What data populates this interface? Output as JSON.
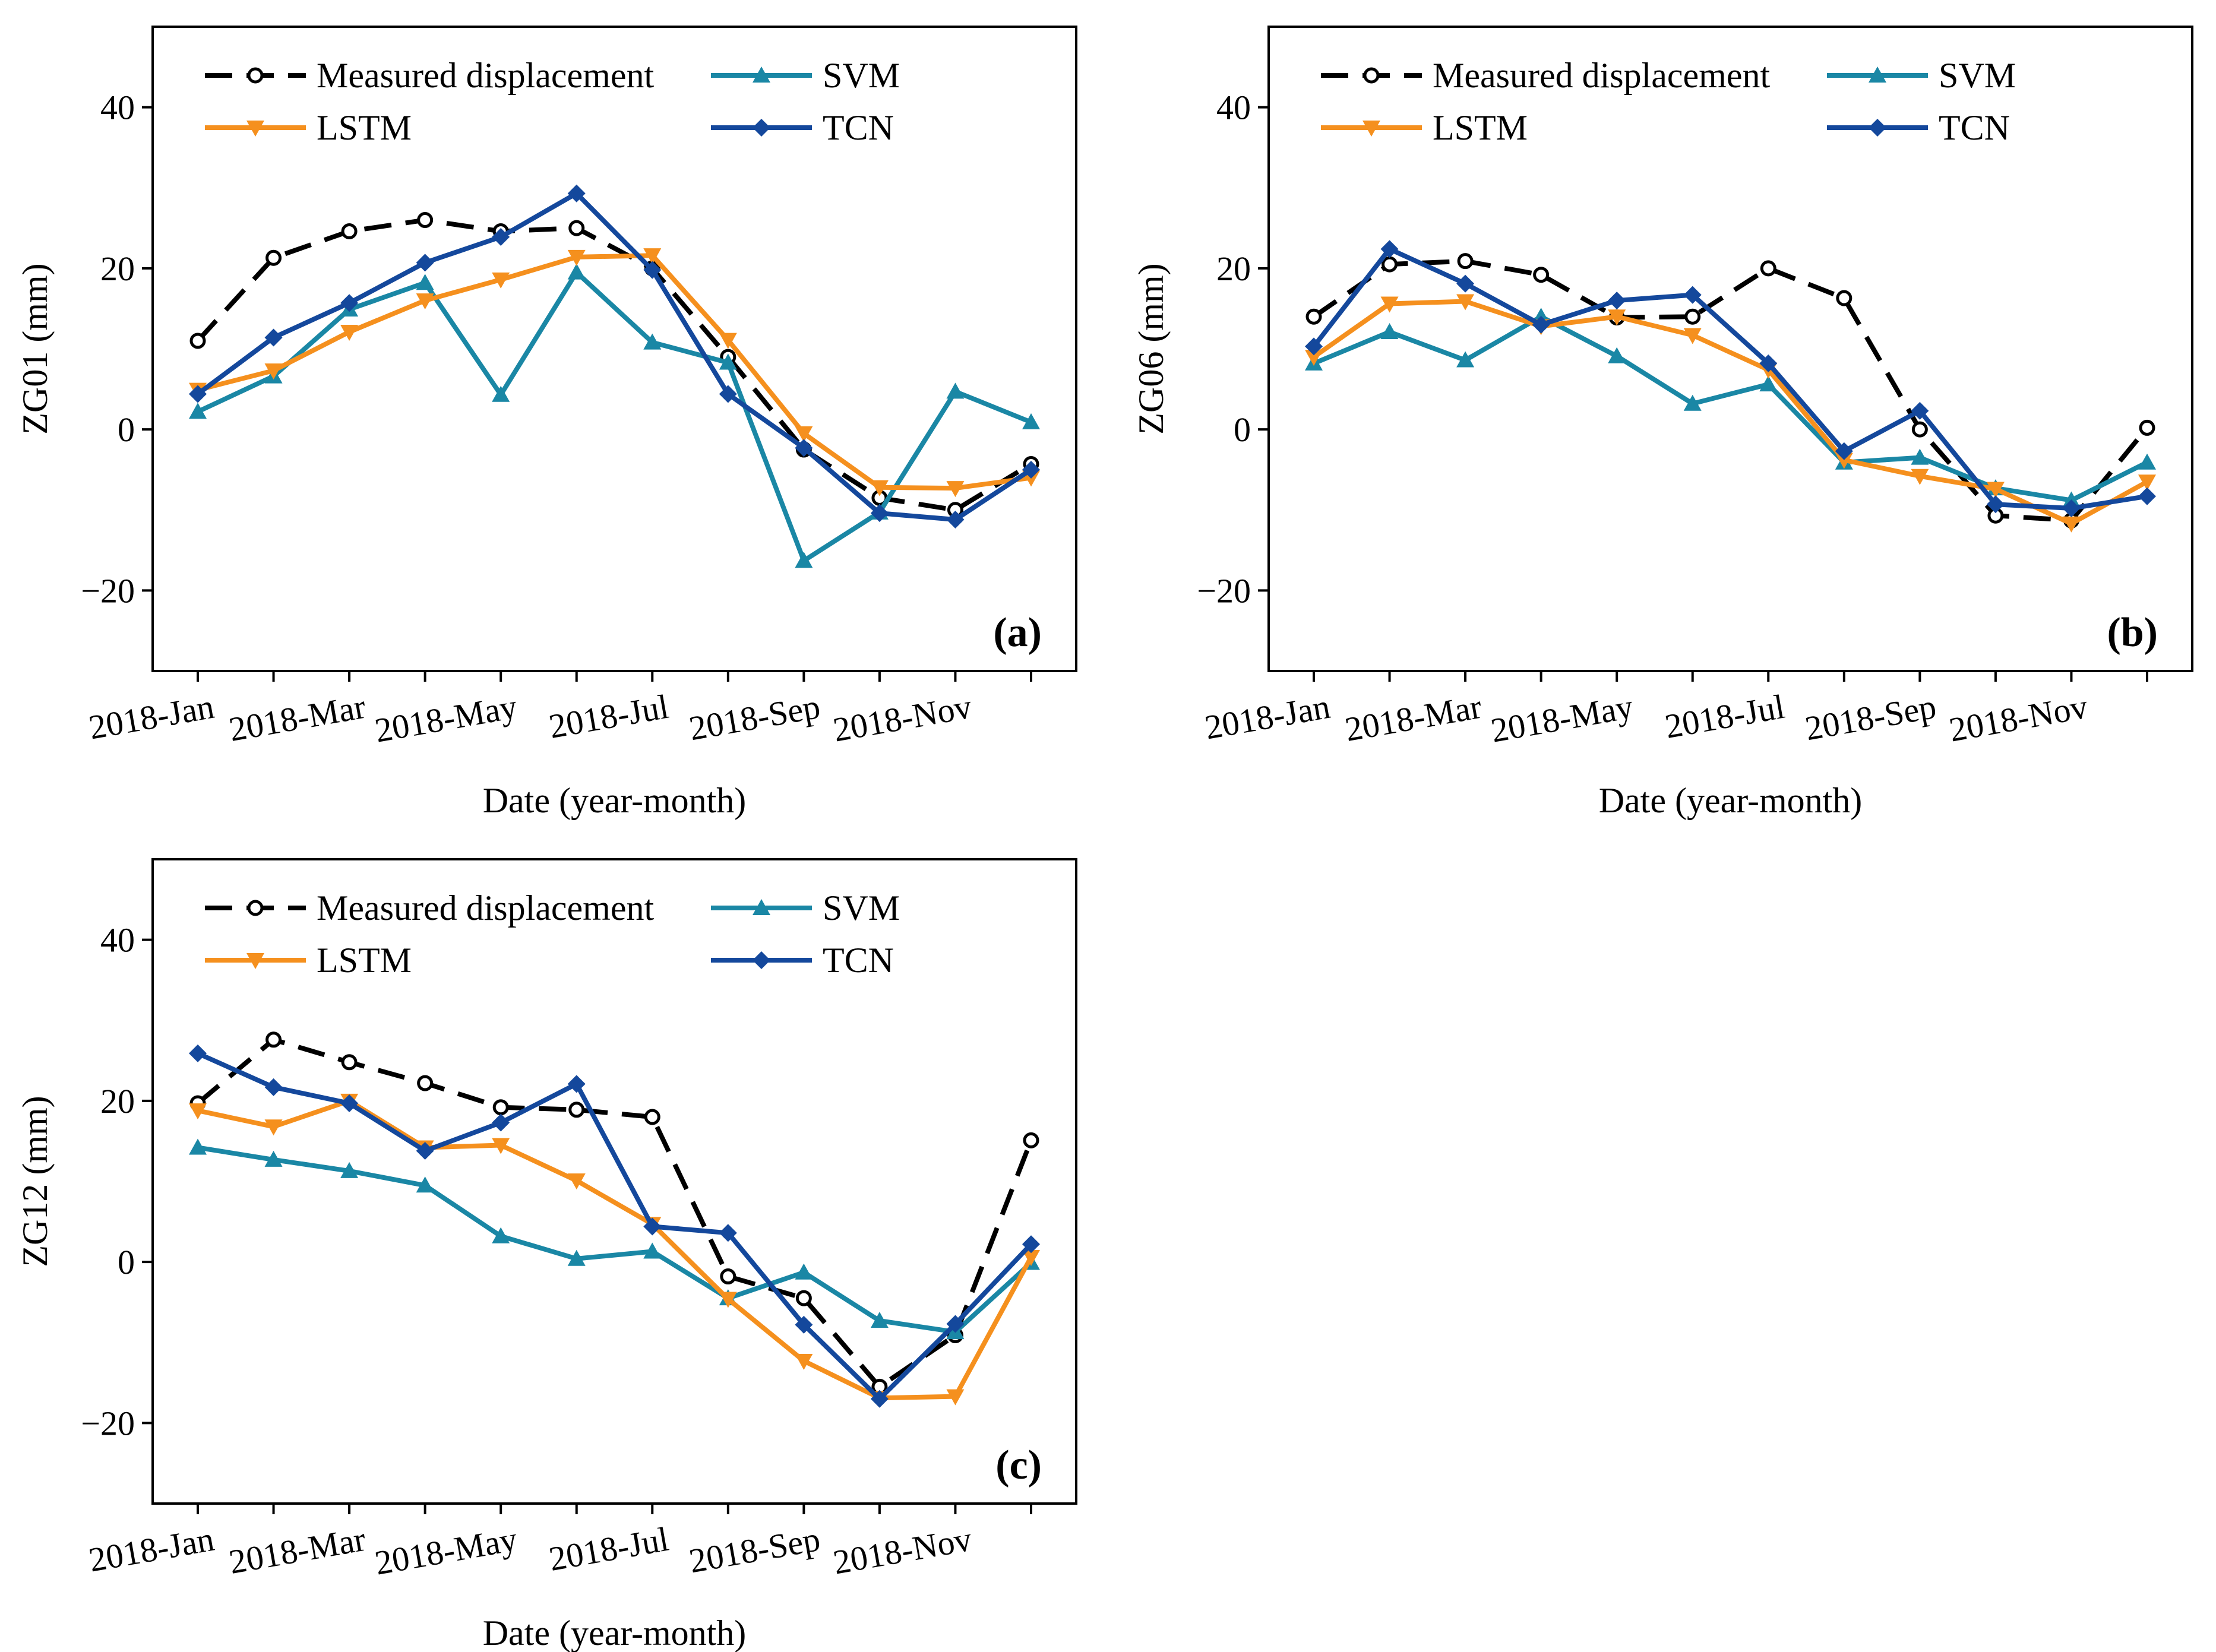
{
  "figure": {
    "xlabel": "Date (year-month)",
    "x_ticks": [
      "2018-Jan",
      "2018-Mar",
      "2018-May",
      "2018-Jul",
      "2018-Sep",
      "2018-Nov"
    ]
  },
  "chart_data": [
    {
      "type": "line",
      "panel": "(a)",
      "ylabel": "ZG01 (mm)",
      "xlabel": "Date (year-month)",
      "categories": [
        "2018-Jan",
        "2018-Feb",
        "2018-Mar",
        "2018-Apr",
        "2018-May",
        "2018-Jun",
        "2018-Jul",
        "2018-Aug",
        "2018-Sep",
        "2018-Oct",
        "2018-Nov",
        "2018-Dec"
      ],
      "x_tick_labels": [
        "2018-Jan",
        "2018-Mar",
        "2018-May",
        "2018-Jul",
        "2018-Sep",
        "2018-Nov"
      ],
      "ylim": [
        -30,
        50
      ],
      "y_ticks": [
        -20,
        0,
        20,
        40
      ],
      "y_tick_labels": [
        "−20",
        "0",
        "20",
        "40"
      ],
      "legend": "top-left",
      "series": [
        {
          "name": "Measured displacement",
          "color": "#000000",
          "marker": "circle-open",
          "dashed": true,
          "values": [
            11,
            21.3,
            24.6,
            26,
            24.6,
            25,
            20,
            9,
            -2.5,
            -8.5,
            -10,
            -4.3
          ]
        },
        {
          "name": "SVM",
          "color": "#1a87a5",
          "marker": "triangle-up",
          "dashed": false,
          "values": [
            2.2,
            6.6,
            14.9,
            18.2,
            4.3,
            19.5,
            10.8,
            8.3,
            -16.3,
            -10.3,
            4.7,
            0.9
          ]
        },
        {
          "name": "LSTM",
          "color": "#f5901e",
          "marker": "triangle-down",
          "dashed": false,
          "values": [
            4.9,
            7.3,
            12.1,
            16,
            18.6,
            21.4,
            21.6,
            11.1,
            -0.5,
            -7.2,
            -7.3,
            -6
          ]
        },
        {
          "name": "TCN",
          "color": "#14489c",
          "marker": "diamond",
          "dashed": false,
          "values": [
            4.4,
            11.4,
            15.7,
            20.7,
            23.9,
            29.3,
            19.8,
            4.4,
            -2.3,
            -10.4,
            -11.2,
            -5
          ]
        }
      ]
    },
    {
      "type": "line",
      "panel": "(b)",
      "ylabel": "ZG06 (mm)",
      "xlabel": "Date (year-month)",
      "categories": [
        "2018-Jan",
        "2018-Feb",
        "2018-Mar",
        "2018-Apr",
        "2018-May",
        "2018-Jun",
        "2018-Jul",
        "2018-Aug",
        "2018-Sep",
        "2018-Oct",
        "2018-Nov",
        "2018-Dec"
      ],
      "x_tick_labels": [
        "2018-Jan",
        "2018-Mar",
        "2018-May",
        "2018-Jul",
        "2018-Sep",
        "2018-Nov"
      ],
      "ylim": [
        -30,
        50
      ],
      "y_ticks": [
        -20,
        0,
        20,
        40
      ],
      "y_tick_labels": [
        "−20",
        "0",
        "20",
        "40"
      ],
      "legend": "top-left",
      "series": [
        {
          "name": "Measured displacement",
          "color": "#000000",
          "marker": "circle-open",
          "dashed": true,
          "values": [
            14,
            20.5,
            20.9,
            19.2,
            13.9,
            14,
            20,
            16.3,
            0,
            -10.7,
            -11.3,
            0.2
          ]
        },
        {
          "name": "SVM",
          "color": "#1a87a5",
          "marker": "triangle-up",
          "dashed": false,
          "values": [
            8.2,
            12.1,
            8.6,
            14,
            9.1,
            3.2,
            5.6,
            -4.1,
            -3.5,
            -7.3,
            -8.8,
            -4.1
          ]
        },
        {
          "name": "LSTM",
          "color": "#f5901e",
          "marker": "triangle-down",
          "dashed": false,
          "values": [
            9,
            15.6,
            15.9,
            12.8,
            14,
            11.7,
            7.4,
            -3.8,
            -5.8,
            -7.4,
            -11.7,
            -6.5
          ]
        },
        {
          "name": "TCN",
          "color": "#14489c",
          "marker": "diamond",
          "dashed": false,
          "values": [
            10.3,
            22.4,
            18.1,
            13,
            16,
            16.7,
            8.2,
            -2.7,
            2.3,
            -9.3,
            -9.8,
            -8.3
          ]
        }
      ]
    },
    {
      "type": "line",
      "panel": "(c)",
      "ylabel": "ZG12 (mm)",
      "xlabel": "Date (year-month)",
      "categories": [
        "2018-Jan",
        "2018-Feb",
        "2018-Mar",
        "2018-Apr",
        "2018-May",
        "2018-Jun",
        "2018-Jul",
        "2018-Aug",
        "2018-Sep",
        "2018-Oct",
        "2018-Nov",
        "2018-Dec"
      ],
      "x_tick_labels": [
        "2018-Jan",
        "2018-Mar",
        "2018-May",
        "2018-Jul",
        "2018-Sep",
        "2018-Nov"
      ],
      "ylim": [
        -30,
        50
      ],
      "y_ticks": [
        -20,
        0,
        20,
        40
      ],
      "y_tick_labels": [
        "−20",
        "0",
        "20",
        "40"
      ],
      "legend": "top-left",
      "series": [
        {
          "name": "Measured displacement",
          "color": "#000000",
          "marker": "circle-open",
          "dashed": true,
          "values": [
            19.7,
            27.6,
            24.8,
            22.2,
            19.2,
            18.9,
            18,
            -1.8,
            -4.5,
            -15.5,
            -9.1,
            15.1
          ]
        },
        {
          "name": "SVM",
          "color": "#1a87a5",
          "marker": "triangle-up",
          "dashed": false,
          "values": [
            14.2,
            12.7,
            11.3,
            9.5,
            3.2,
            0.4,
            1.3,
            -4.5,
            -1.3,
            -7.3,
            -8.7,
            -0.1
          ]
        },
        {
          "name": "LSTM",
          "color": "#f5901e",
          "marker": "triangle-down",
          "dashed": false,
          "values": [
            18.8,
            16.8,
            20,
            14.2,
            14.5,
            10.1,
            4.7,
            -4.6,
            -12.3,
            -16.9,
            -16.7,
            0.6
          ]
        },
        {
          "name": "TCN",
          "color": "#14489c",
          "marker": "diamond",
          "dashed": false,
          "values": [
            25.9,
            21.7,
            19.7,
            13.8,
            17.3,
            22.1,
            4.4,
            3.6,
            -7.8,
            -17,
            -7.7,
            2.2
          ]
        }
      ]
    }
  ]
}
